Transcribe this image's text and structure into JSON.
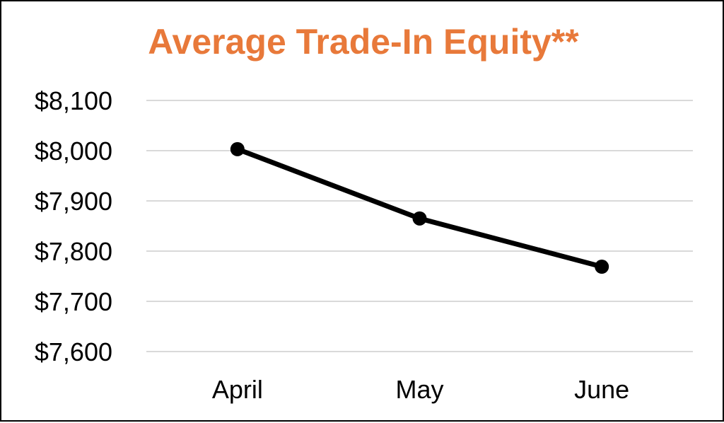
{
  "chart_data": {
    "type": "line",
    "title": "Average Trade-In Equity**",
    "categories": [
      "April",
      "May",
      "June"
    ],
    "series": [
      {
        "values": [
          8003,
          7865,
          7769
        ]
      }
    ],
    "y_ticks": [
      "$7,600",
      "$7,700",
      "$7,800",
      "$7,900",
      "$8,000",
      "$8,100"
    ],
    "ylim": [
      7600,
      8100
    ],
    "xlabel": "",
    "ylabel": "",
    "grid": true,
    "legend": "none",
    "colors": {
      "title": "#E8793A",
      "line": "#000000",
      "grid": "#D9D9D9"
    }
  }
}
